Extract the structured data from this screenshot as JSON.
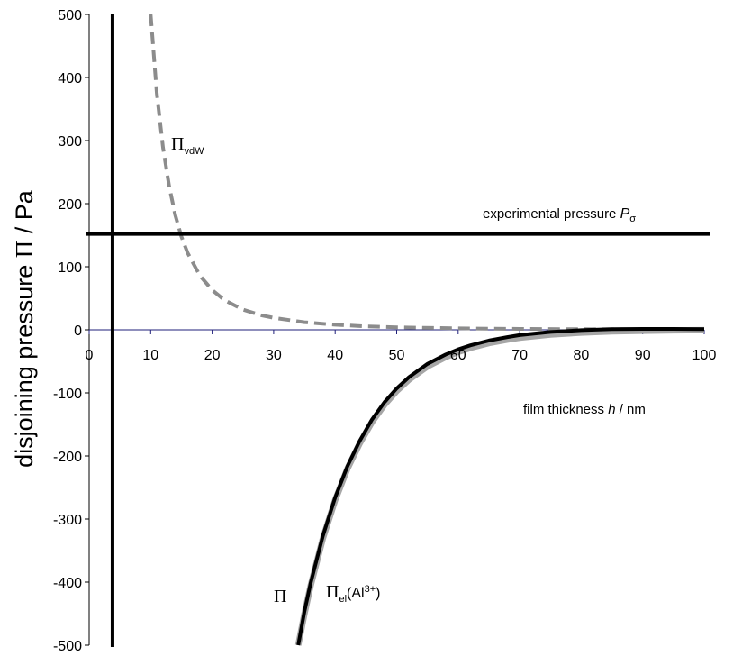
{
  "chart_data": {
    "type": "line",
    "xlabel": {
      "prefix": "film thickness ",
      "var": "h",
      "suffix": " / nm"
    },
    "ylabel": {
      "prefix": "disjoining pressure ",
      "symbol": "Π",
      "suffix": " / Pa"
    },
    "xlim": [
      0,
      100
    ],
    "ylim": [
      -500,
      500
    ],
    "x_ticks": [
      "0",
      "10",
      "20",
      "30",
      "40",
      "50",
      "60",
      "70",
      "80",
      "90",
      "100"
    ],
    "y_ticks": [
      "500",
      "400",
      "300",
      "200",
      "100",
      "0",
      "-100",
      "-200",
      "-300",
      "-400",
      "-500"
    ],
    "grid": false,
    "vertical_line": {
      "x": 3.8
    },
    "horizontal_line": {
      "y": 152,
      "label": {
        "text": "experimental pressure ",
        "var": "P",
        "sub": "σ"
      }
    },
    "series": [
      {
        "name": "Π vdW",
        "label": {
          "symbol": "Π",
          "sub": "vdW"
        },
        "style": "dashed",
        "color": "#8c8c8c",
        "x": [
          10,
          11,
          12,
          13,
          14,
          15,
          16,
          18,
          20,
          22,
          25,
          28,
          30,
          35,
          40,
          45,
          50,
          60,
          70,
          80,
          90,
          100
        ],
        "y": [
          500,
          375,
          289,
          228,
          182,
          148,
          122,
          86,
          63,
          47,
          32,
          23,
          19,
          12,
          8,
          5.5,
          4,
          2.3,
          1.5,
          1,
          0.7,
          0.5
        ]
      },
      {
        "name": "Π el(Al3+)",
        "label": {
          "symbol": "Π",
          "sub": "el",
          "paren_open": "(Al",
          "sup": "3+",
          "paren_close": ")"
        },
        "style": "solid",
        "color": "#a6a6a6",
        "x": [
          34,
          35,
          36,
          38,
          40,
          42,
          44,
          46,
          48,
          50,
          52,
          55,
          58,
          60,
          62,
          65,
          68,
          70,
          75,
          80,
          85,
          90,
          95,
          100
        ],
        "y": [
          -500,
          -451,
          -406,
          -331,
          -270,
          -220,
          -180,
          -146,
          -119,
          -97,
          -79,
          -58,
          -43,
          -35,
          -28.5,
          -21,
          -15.5,
          -12.5,
          -7.5,
          -4.5,
          -2.6,
          -1.5,
          -0.9,
          -0.5
        ]
      },
      {
        "name": "Π",
        "label": {
          "symbol": "Π"
        },
        "style": "solid",
        "color": "#000000",
        "x": [
          34,
          35,
          36,
          38,
          40,
          42,
          44,
          46,
          48,
          50,
          52,
          55,
          58,
          60,
          62,
          65,
          68,
          70,
          75,
          80,
          85,
          90,
          95,
          100
        ],
        "y": [
          -500,
          -447,
          -402,
          -327,
          -266,
          -216,
          -176,
          -142,
          -115,
          -93,
          -75,
          -54,
          -39,
          -31,
          -24.5,
          -17,
          -11.5,
          -8.5,
          -3.5,
          -0.5,
          1,
          1.5,
          1.4,
          1.2
        ]
      }
    ]
  }
}
